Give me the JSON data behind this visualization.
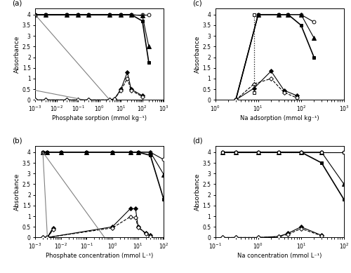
{
  "panel_a": {
    "title": "(a)",
    "xlabel": "Phosphate sorption (mmol kg⁻¹)",
    "ylabel": "Absorbance",
    "xlim": [
      0.001,
      1000
    ],
    "ylim": [
      0,
      4.3
    ],
    "yticks": [
      0,
      0.5,
      1.0,
      1.5,
      2.0,
      2.5,
      3.0,
      3.5,
      4.0
    ],
    "series": [
      {
        "x": [
          0.001,
          0.003,
          0.03,
          0.1,
          0.3,
          3,
          10,
          30,
          100,
          200
        ],
        "y": [
          4.0,
          4.0,
          4.0,
          4.0,
          4.0,
          4.0,
          4.0,
          4.0,
          4.0,
          4.0
        ],
        "marker": "o",
        "fill": false,
        "line": "-",
        "color": "black",
        "lw": 0.8
      },
      {
        "x": [
          0.001,
          0.003,
          0.03,
          0.1,
          0.3,
          3,
          10,
          30,
          100,
          200
        ],
        "y": [
          4.0,
          4.0,
          4.0,
          4.0,
          4.0,
          4.0,
          4.0,
          4.0,
          3.7,
          1.75
        ],
        "marker": "s",
        "fill": true,
        "line": "-",
        "color": "black",
        "lw": 1.2
      },
      {
        "x": [
          0.001,
          0.003,
          0.03,
          0.1,
          0.3,
          3,
          10,
          30,
          100,
          200
        ],
        "y": [
          4.0,
          4.0,
          4.0,
          4.0,
          4.0,
          4.0,
          4.0,
          4.0,
          3.95,
          2.5
        ],
        "marker": "^",
        "fill": true,
        "line": "-",
        "color": "black",
        "lw": 0.8
      },
      {
        "x": [
          0.001,
          0.003,
          0.03,
          0.1,
          0.3,
          3,
          5,
          10,
          20,
          30,
          100
        ],
        "y": [
          0.0,
          0.0,
          0.0,
          0.0,
          0.0,
          0.0,
          0.05,
          0.5,
          1.3,
          0.5,
          0.2
        ],
        "marker": "D",
        "fill": true,
        "line": "-",
        "color": "black",
        "lw": 0.8
      },
      {
        "x": [
          0.001,
          0.003,
          0.03,
          0.1,
          0.3,
          3,
          5,
          10,
          20,
          30,
          100
        ],
        "y": [
          0.0,
          0.0,
          0.0,
          0.0,
          0.0,
          0.0,
          0.04,
          0.45,
          1.0,
          0.45,
          0.15
        ],
        "marker": "D",
        "fill": false,
        "line": "--",
        "color": "black",
        "lw": 0.8
      },
      {
        "x": [
          0.001,
          0.2
        ],
        "y": [
          0.45,
          0.0
        ],
        "marker": null,
        "fill": false,
        "line": "-",
        "color": "gray",
        "lw": 0.8
      },
      {
        "x": [
          0.001,
          3
        ],
        "y": [
          4.0,
          0.0
        ],
        "marker": null,
        "fill": false,
        "line": "-",
        "color": "gray",
        "lw": 0.8
      }
    ]
  },
  "panel_b": {
    "title": "(b)",
    "xlabel": "Phosphate concentration (mmol L⁻¹)",
    "ylabel": "Absorbance",
    "xlim": [
      0.001,
      100
    ],
    "ylim": [
      0,
      4.3
    ],
    "yticks": [
      0,
      0.5,
      1.0,
      1.5,
      2.0,
      2.5,
      3.0,
      3.5,
      4.0
    ],
    "series": [
      {
        "x": [
          0.002,
          0.003,
          0.01,
          0.1,
          1,
          5,
          10,
          30,
          100
        ],
        "y": [
          4.0,
          4.0,
          4.0,
          4.0,
          4.0,
          4.0,
          4.0,
          4.0,
          3.65
        ],
        "marker": "o",
        "fill": false,
        "line": "-",
        "color": "black",
        "lw": 0.8
      },
      {
        "x": [
          0.002,
          0.003,
          0.01,
          0.1,
          1,
          5,
          10,
          30,
          100
        ],
        "y": [
          4.0,
          4.0,
          4.0,
          4.0,
          4.0,
          4.0,
          4.0,
          3.85,
          1.78
        ],
        "marker": "s",
        "fill": true,
        "line": "-",
        "color": "black",
        "lw": 1.2
      },
      {
        "x": [
          0.002,
          0.003,
          0.01,
          0.1,
          1,
          5,
          10,
          30,
          100
        ],
        "y": [
          4.0,
          4.0,
          4.0,
          4.0,
          4.0,
          4.0,
          4.0,
          4.0,
          2.95
        ],
        "marker": "^",
        "fill": true,
        "line": "-",
        "color": "black",
        "lw": 0.8
      },
      {
        "x": [
          0.002,
          0.003,
          0.005,
          0.003,
          1,
          5,
          8,
          10,
          20,
          30
        ],
        "y": [
          0.0,
          0.0,
          0.45,
          0.0,
          0.5,
          1.35,
          1.35,
          0.5,
          0.2,
          0.1
        ],
        "marker": "D",
        "fill": true,
        "line": "-",
        "color": "black",
        "lw": 0.8
      },
      {
        "x": [
          0.002,
          0.003,
          0.005,
          0.003,
          1,
          5,
          8,
          10,
          20,
          30
        ],
        "y": [
          0.0,
          0.0,
          0.38,
          0.0,
          0.45,
          0.97,
          0.92,
          0.48,
          0.18,
          0.05
        ],
        "marker": "D",
        "fill": false,
        "line": "--",
        "color": "black",
        "lw": 0.8
      },
      {
        "x": [
          0.002,
          0.003
        ],
        "y": [
          4.0,
          0.0
        ],
        "marker": null,
        "fill": false,
        "line": "-",
        "color": "gray",
        "lw": 0.8
      },
      {
        "x": [
          0.002,
          0.5
        ],
        "y": [
          4.0,
          0.0
        ],
        "marker": null,
        "fill": false,
        "line": "-",
        "color": "gray",
        "lw": 0.8
      }
    ]
  },
  "panel_c": {
    "title": "(c)",
    "xlabel": "Na adsorption (mmol kg⁻¹)",
    "ylabel": "Absorbance",
    "xlim": [
      1,
      1000
    ],
    "ylim": [
      0,
      4.3
    ],
    "yticks": [
      0,
      0.5,
      1.0,
      1.5,
      2.0,
      2.5,
      3.0,
      3.5,
      4.0
    ],
    "series": [
      {
        "x": [
          3,
          10,
          30,
          50,
          100,
          200
        ],
        "y": [
          0.0,
          4.0,
          4.0,
          4.0,
          4.0,
          3.65
        ],
        "marker": "o",
        "fill": false,
        "line": "-",
        "color": "black",
        "lw": 0.8
      },
      {
        "x": [
          3,
          10,
          30,
          50,
          100,
          200
        ],
        "y": [
          0.0,
          4.0,
          4.0,
          4.0,
          3.5,
          2.0
        ],
        "marker": "s",
        "fill": true,
        "line": "-",
        "color": "black",
        "lw": 1.2
      },
      {
        "x": [
          3,
          10,
          30,
          50,
          100,
          200
        ],
        "y": [
          0.0,
          4.0,
          4.0,
          4.0,
          4.0,
          2.9
        ],
        "marker": "^",
        "fill": true,
        "line": "-",
        "color": "black",
        "lw": 0.8
      },
      {
        "x": [
          3,
          8,
          20,
          40,
          80
        ],
        "y": [
          0.0,
          0.55,
          1.35,
          0.45,
          0.2
        ],
        "marker": "D",
        "fill": true,
        "line": "-",
        "color": "black",
        "lw": 0.8
      },
      {
        "x": [
          3,
          8,
          20,
          40,
          80
        ],
        "y": [
          0.0,
          0.75,
          1.0,
          0.35,
          0.1
        ],
        "marker": "D",
        "fill": false,
        "line": "--",
        "color": "black",
        "lw": 0.8
      },
      {
        "x": [
          8,
          8
        ],
        "y": [
          4.0,
          0.35
        ],
        "marker": "s",
        "fill": false,
        "line": ":",
        "color": "black",
        "lw": 0.9
      }
    ]
  },
  "panel_d": {
    "title": "(d)",
    "xlabel": "Na concentration (mmol L⁻¹)",
    "ylabel": "Absorbance",
    "xlim": [
      0.1,
      100
    ],
    "ylim": [
      0,
      4.3
    ],
    "yticks": [
      0,
      0.5,
      1.0,
      1.5,
      2.0,
      2.5,
      3.0,
      3.5,
      4.0
    ],
    "series": [
      {
        "x": [
          0.15,
          0.3,
          1,
          3,
          10,
          30,
          100
        ],
        "y": [
          4.0,
          4.0,
          4.0,
          4.0,
          4.0,
          4.0,
          4.0
        ],
        "marker": "o",
        "fill": false,
        "line": "-",
        "color": "black",
        "lw": 0.8
      },
      {
        "x": [
          0.15,
          0.3,
          1,
          3,
          10,
          30,
          100
        ],
        "y": [
          4.0,
          4.0,
          4.0,
          4.0,
          4.0,
          3.5,
          1.78
        ],
        "marker": "s",
        "fill": true,
        "line": "-",
        "color": "black",
        "lw": 1.2
      },
      {
        "x": [
          0.15,
          0.3,
          1,
          3,
          10,
          30,
          100
        ],
        "y": [
          4.0,
          4.0,
          4.0,
          4.0,
          4.0,
          4.0,
          2.5
        ],
        "marker": "^",
        "fill": true,
        "line": "-",
        "color": "black",
        "lw": 0.8
      },
      {
        "x": [
          0.15,
          0.3,
          1,
          3,
          10,
          30,
          100
        ],
        "y": [
          4.0,
          4.0,
          4.0,
          4.0,
          4.0,
          4.0,
          4.0
        ],
        "marker": "s",
        "fill": false,
        "line": ":",
        "color": "black",
        "lw": 0.8
      },
      {
        "x": [
          0.15,
          0.3,
          1,
          3,
          5,
          10,
          30
        ],
        "y": [
          0.0,
          0.0,
          0.0,
          0.05,
          0.2,
          0.5,
          0.1
        ],
        "marker": "D",
        "fill": true,
        "line": "-",
        "color": "black",
        "lw": 0.8
      },
      {
        "x": [
          0.15,
          0.3,
          1,
          3,
          5,
          10,
          30
        ],
        "y": [
          0.0,
          0.0,
          0.0,
          0.04,
          0.15,
          0.42,
          0.08
        ],
        "marker": "D",
        "fill": false,
        "line": "--",
        "color": "black",
        "lw": 0.8
      }
    ]
  }
}
